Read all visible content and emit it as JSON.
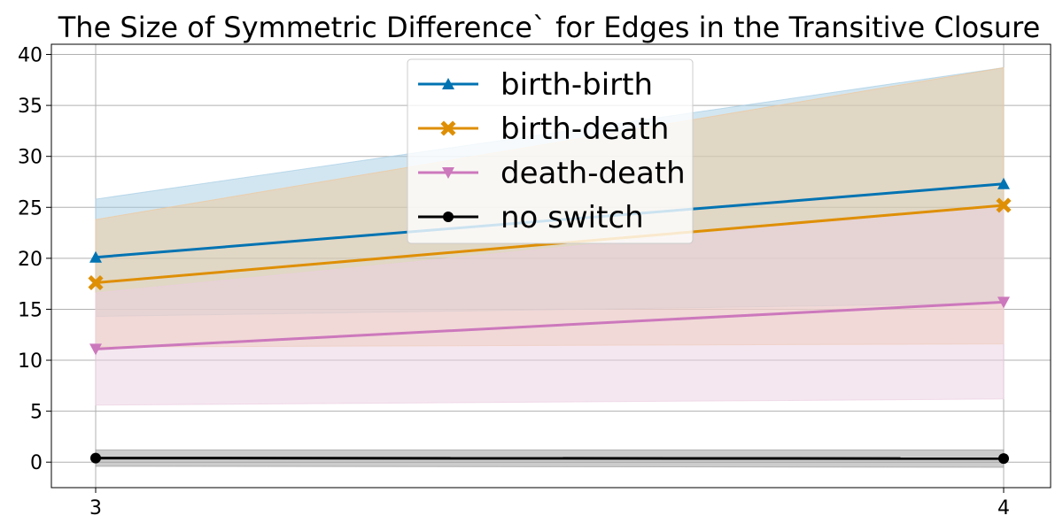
{
  "chart_data": {
    "type": "line",
    "title": "The Size of Symmetric Difference` for Edges in the Transitive Closure",
    "xlabel": "",
    "ylabel": "",
    "x": [
      3,
      4
    ],
    "x_ticks": [
      "3",
      "4"
    ],
    "ylim": [
      -2.5,
      41
    ],
    "y_ticks": [
      0,
      5,
      10,
      15,
      20,
      25,
      30,
      35,
      40
    ],
    "grid": true,
    "legend_position": "top-center",
    "series": [
      {
        "name": "birth-birth",
        "values": [
          20.1,
          27.3
        ],
        "lower": [
          14.3,
          15.6
        ],
        "upper": [
          25.8,
          38.7
        ],
        "color": "#0173b2",
        "band_color": "#a6cde4",
        "marker": "triangle-up"
      },
      {
        "name": "birth-death",
        "values": [
          17.6,
          25.2
        ],
        "lower": [
          11.3,
          11.6
        ],
        "upper": [
          23.8,
          38.7
        ],
        "color": "#de8f05",
        "band_color": "#efc79a",
        "marker": "x"
      },
      {
        "name": "death-death",
        "values": [
          11.1,
          15.7
        ],
        "lower": [
          5.6,
          6.2
        ],
        "upper": [
          16.6,
          25.3
        ],
        "color": "#cc78bc",
        "band_color": "#ebcfe1",
        "marker": "triangle-down"
      },
      {
        "name": "no switch",
        "values": [
          0.4,
          0.35
        ],
        "lower": [
          -0.4,
          -0.5
        ],
        "upper": [
          1.2,
          1.2
        ],
        "color": "#000000",
        "band_color": "#9a9a9a",
        "marker": "circle"
      }
    ]
  }
}
